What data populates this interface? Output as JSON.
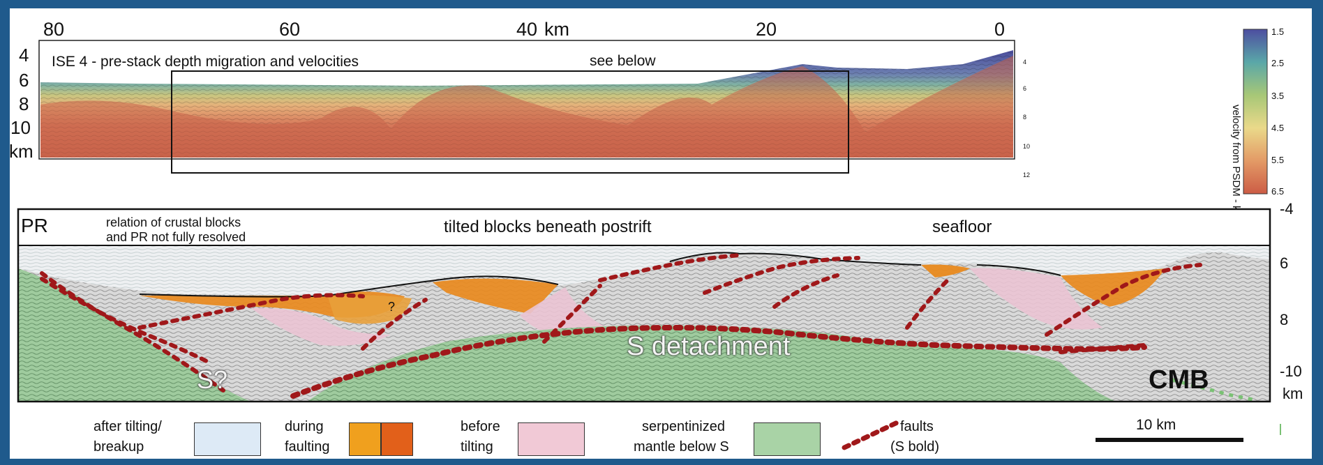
{
  "top_panel": {
    "title": "ISE 4 - pre-stack depth migration and velocities",
    "see_below": "see below",
    "x_ticks": [
      "80",
      "60",
      "40",
      "20",
      "0"
    ],
    "x_unit": "km",
    "y_ticks": [
      "4",
      "6",
      "8",
      "10"
    ],
    "y_unit": "km",
    "small_depth_ticks": [
      "4",
      "6",
      "8",
      "10",
      "12"
    ]
  },
  "colorbar": {
    "label": "velocity from PSDM - km/s",
    "ticks": [
      "1.5",
      "2.5",
      "3.5",
      "4.5",
      "5.5",
      "6.5"
    ],
    "colors": [
      "#4d4ea0",
      "#5aa7a8",
      "#a7c777",
      "#ead98a",
      "#e39a66",
      "#cc5c45"
    ]
  },
  "bottom_panel": {
    "pr_label": "PR",
    "note_line1": "relation of crustal blocks",
    "note_line2": "and PR not fully resolved",
    "tilted_label": "tilted blocks beneath postrift",
    "seafloor_label": "seafloor",
    "question_mark": "?",
    "s_question": "S?",
    "detachment_label": "S detachment",
    "cmb_label": "CMB",
    "y_ticks": [
      "-4",
      "6",
      "8",
      "-10"
    ],
    "y_unit": "km"
  },
  "legend": {
    "items": [
      {
        "line1": "after tilting/",
        "line2": "breakup",
        "color": "#ddeaf6"
      },
      {
        "line1": "during",
        "line2": "faulting",
        "color": "#f0a01e",
        "color2": "#e2601a"
      },
      {
        "line1": "before",
        "line2": "tilting",
        "color": "#f1c9d6"
      },
      {
        "line1": "serpentinized",
        "line2": "mantle below S",
        "color": "#a9d3a6"
      },
      {
        "line1": "faults",
        "line2": "(S bold)",
        "color": "#a0181a"
      }
    ],
    "scale_label": "10 km"
  }
}
